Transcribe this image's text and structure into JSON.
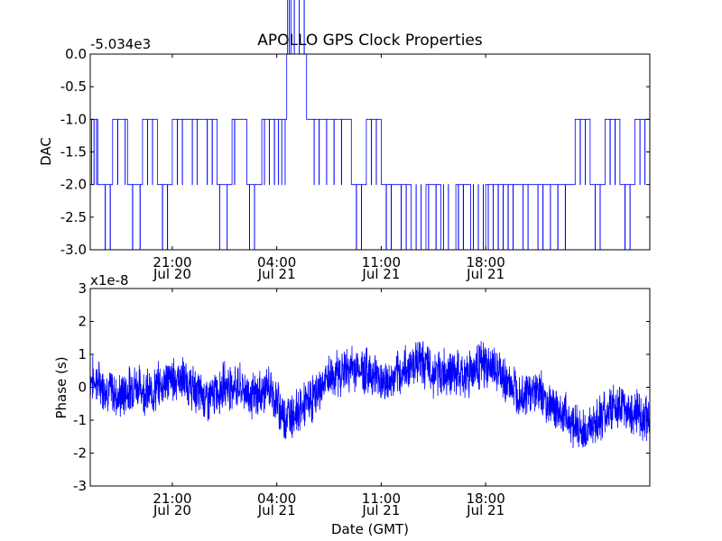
{
  "figure": {
    "title": "APOLLO GPS Clock Properties",
    "xlabel": "Date (GMT)"
  },
  "chart_data": [
    {
      "type": "line",
      "title": "APOLLO GPS Clock Properties",
      "ylabel": "DAC",
      "offset_text": "-5.034e3",
      "ylim": [
        -3.0,
        0.0
      ],
      "yticks": [
        0.0,
        -0.5,
        -1.0,
        -1.5,
        -2.0,
        -2.5,
        -3.0
      ],
      "ytick_labels": [
        "0.0",
        "-0.5",
        "-1.0",
        "-1.5",
        "-2.0",
        "-2.5",
        "-3.0"
      ],
      "xlim": [
        "2010-07-20 15:30",
        "2010-07-22 05:00"
      ],
      "xticks": [
        "2010-07-20 21:00",
        "2010-07-21 04:00",
        "2010-07-21 11:00",
        "2010-07-21 18:00"
      ],
      "xtick_labels": [
        [
          "21:00",
          "Jul 20"
        ],
        [
          "04:00",
          "Jul 21"
        ],
        [
          "11:00",
          "Jul 21"
        ],
        [
          "18:00",
          "Jul 21"
        ]
      ],
      "grid": false,
      "line_color": "#0000ff",
      "series": [
        {
          "x": [
            "2010-07-20 15:30",
            "2010-07-20 16:00",
            "2010-07-20 17:00",
            "2010-07-20 18:00",
            "2010-07-20 19:00",
            "2010-07-20 20:00",
            "2010-07-20 21:00",
            "2010-07-20 22:00",
            "2010-07-20 23:00",
            "2010-07-21 00:00",
            "2010-07-21 01:00",
            "2010-07-21 02:00",
            "2010-07-21 03:00",
            "2010-07-21 04:00",
            "2010-07-21 04:40",
            "2010-07-21 05:00",
            "2010-07-21 06:00",
            "2010-07-21 07:00",
            "2010-07-21 08:00",
            "2010-07-21 09:00",
            "2010-07-21 10:00",
            "2010-07-21 11:00",
            "2010-07-21 12:00",
            "2010-07-21 13:00",
            "2010-07-21 14:00",
            "2010-07-21 15:00",
            "2010-07-21 16:00",
            "2010-07-21 17:00",
            "2010-07-21 18:00",
            "2010-07-21 19:00",
            "2010-07-21 20:00",
            "2010-07-21 21:00",
            "2010-07-21 22:00",
            "2010-07-21 23:00",
            "2010-07-22 00:00",
            "2010-07-22 01:00",
            "2010-07-22 02:00",
            "2010-07-22 03:00",
            "2010-07-22 04:00",
            "2010-07-22 05:00"
          ],
          "y": [
            -1.0,
            -2.0,
            -1.0,
            -2.0,
            -1.0,
            -2.0,
            -1.0,
            -1.0,
            -1.0,
            -2.0,
            -1.0,
            -2.0,
            -1.0,
            -1.0,
            0.0,
            0.0,
            -1.0,
            -1.0,
            -1.0,
            -2.0,
            -1.0,
            -2.0,
            -2.0,
            -3.0,
            -2.0,
            -3.0,
            -2.0,
            -3.0,
            -2.0,
            -2.0,
            -2.0,
            -2.0,
            -2.0,
            -2.0,
            -1.0,
            -2.0,
            -1.0,
            -2.0,
            -1.0,
            -2.0
          ]
        }
      ]
    },
    {
      "type": "line",
      "ylabel": "Phase (s)",
      "offset_text": "x1e-8",
      "ylim": [
        -3,
        3
      ],
      "yticks": [
        3,
        2,
        1,
        0,
        -1,
        -2,
        -3
      ],
      "ytick_labels": [
        "3",
        "2",
        "1",
        "0",
        "-1",
        "-2",
        "-3"
      ],
      "xlim": [
        "2010-07-20 15:30",
        "2010-07-22 05:00"
      ],
      "xticks": [
        "2010-07-20 21:00",
        "2010-07-21 04:00",
        "2010-07-21 11:00",
        "2010-07-21 18:00"
      ],
      "xtick_labels": [
        [
          "21:00",
          "Jul 20"
        ],
        [
          "04:00",
          "Jul 21"
        ],
        [
          "11:00",
          "Jul 21"
        ],
        [
          "18:00",
          "Jul 21"
        ]
      ],
      "xlabel": "Date (GMT)",
      "grid": false,
      "line_color": "#0000ff",
      "series": [
        {
          "x": [
            "2010-07-20 15:30",
            "2010-07-20 16:30",
            "2010-07-20 17:30",
            "2010-07-20 18:30",
            "2010-07-20 19:30",
            "2010-07-20 20:30",
            "2010-07-20 21:30",
            "2010-07-20 22:30",
            "2010-07-20 23:30",
            "2010-07-21 00:30",
            "2010-07-21 01:30",
            "2010-07-21 02:30",
            "2010-07-21 03:30",
            "2010-07-21 04:30",
            "2010-07-21 05:30",
            "2010-07-21 06:30",
            "2010-07-21 07:30",
            "2010-07-21 08:30",
            "2010-07-21 09:30",
            "2010-07-21 10:30",
            "2010-07-21 11:30",
            "2010-07-21 12:30",
            "2010-07-21 13:30",
            "2010-07-21 14:30",
            "2010-07-21 15:30",
            "2010-07-21 16:30",
            "2010-07-21 17:30",
            "2010-07-21 18:30",
            "2010-07-21 19:30",
            "2010-07-21 20:30",
            "2010-07-21 21:30",
            "2010-07-21 22:30",
            "2010-07-21 23:30",
            "2010-07-22 00:30",
            "2010-07-22 01:30",
            "2010-07-22 02:30",
            "2010-07-22 03:30",
            "2010-07-22 04:30"
          ],
          "y": [
            0.3,
            0.0,
            -0.3,
            0.1,
            -0.2,
            0.2,
            0.3,
            -0.1,
            -0.4,
            0.1,
            0.0,
            -0.3,
            0.0,
            -0.9,
            -0.7,
            -0.3,
            0.3,
            0.5,
            0.6,
            0.4,
            0.1,
            0.5,
            0.9,
            0.4,
            0.5,
            0.3,
            0.7,
            0.6,
            0.1,
            -0.2,
            -0.1,
            -0.6,
            -0.9,
            -1.4,
            -1.0,
            -0.6,
            -0.7,
            -0.9
          ],
          "noise_amplitude": 0.9
        }
      ]
    }
  ]
}
